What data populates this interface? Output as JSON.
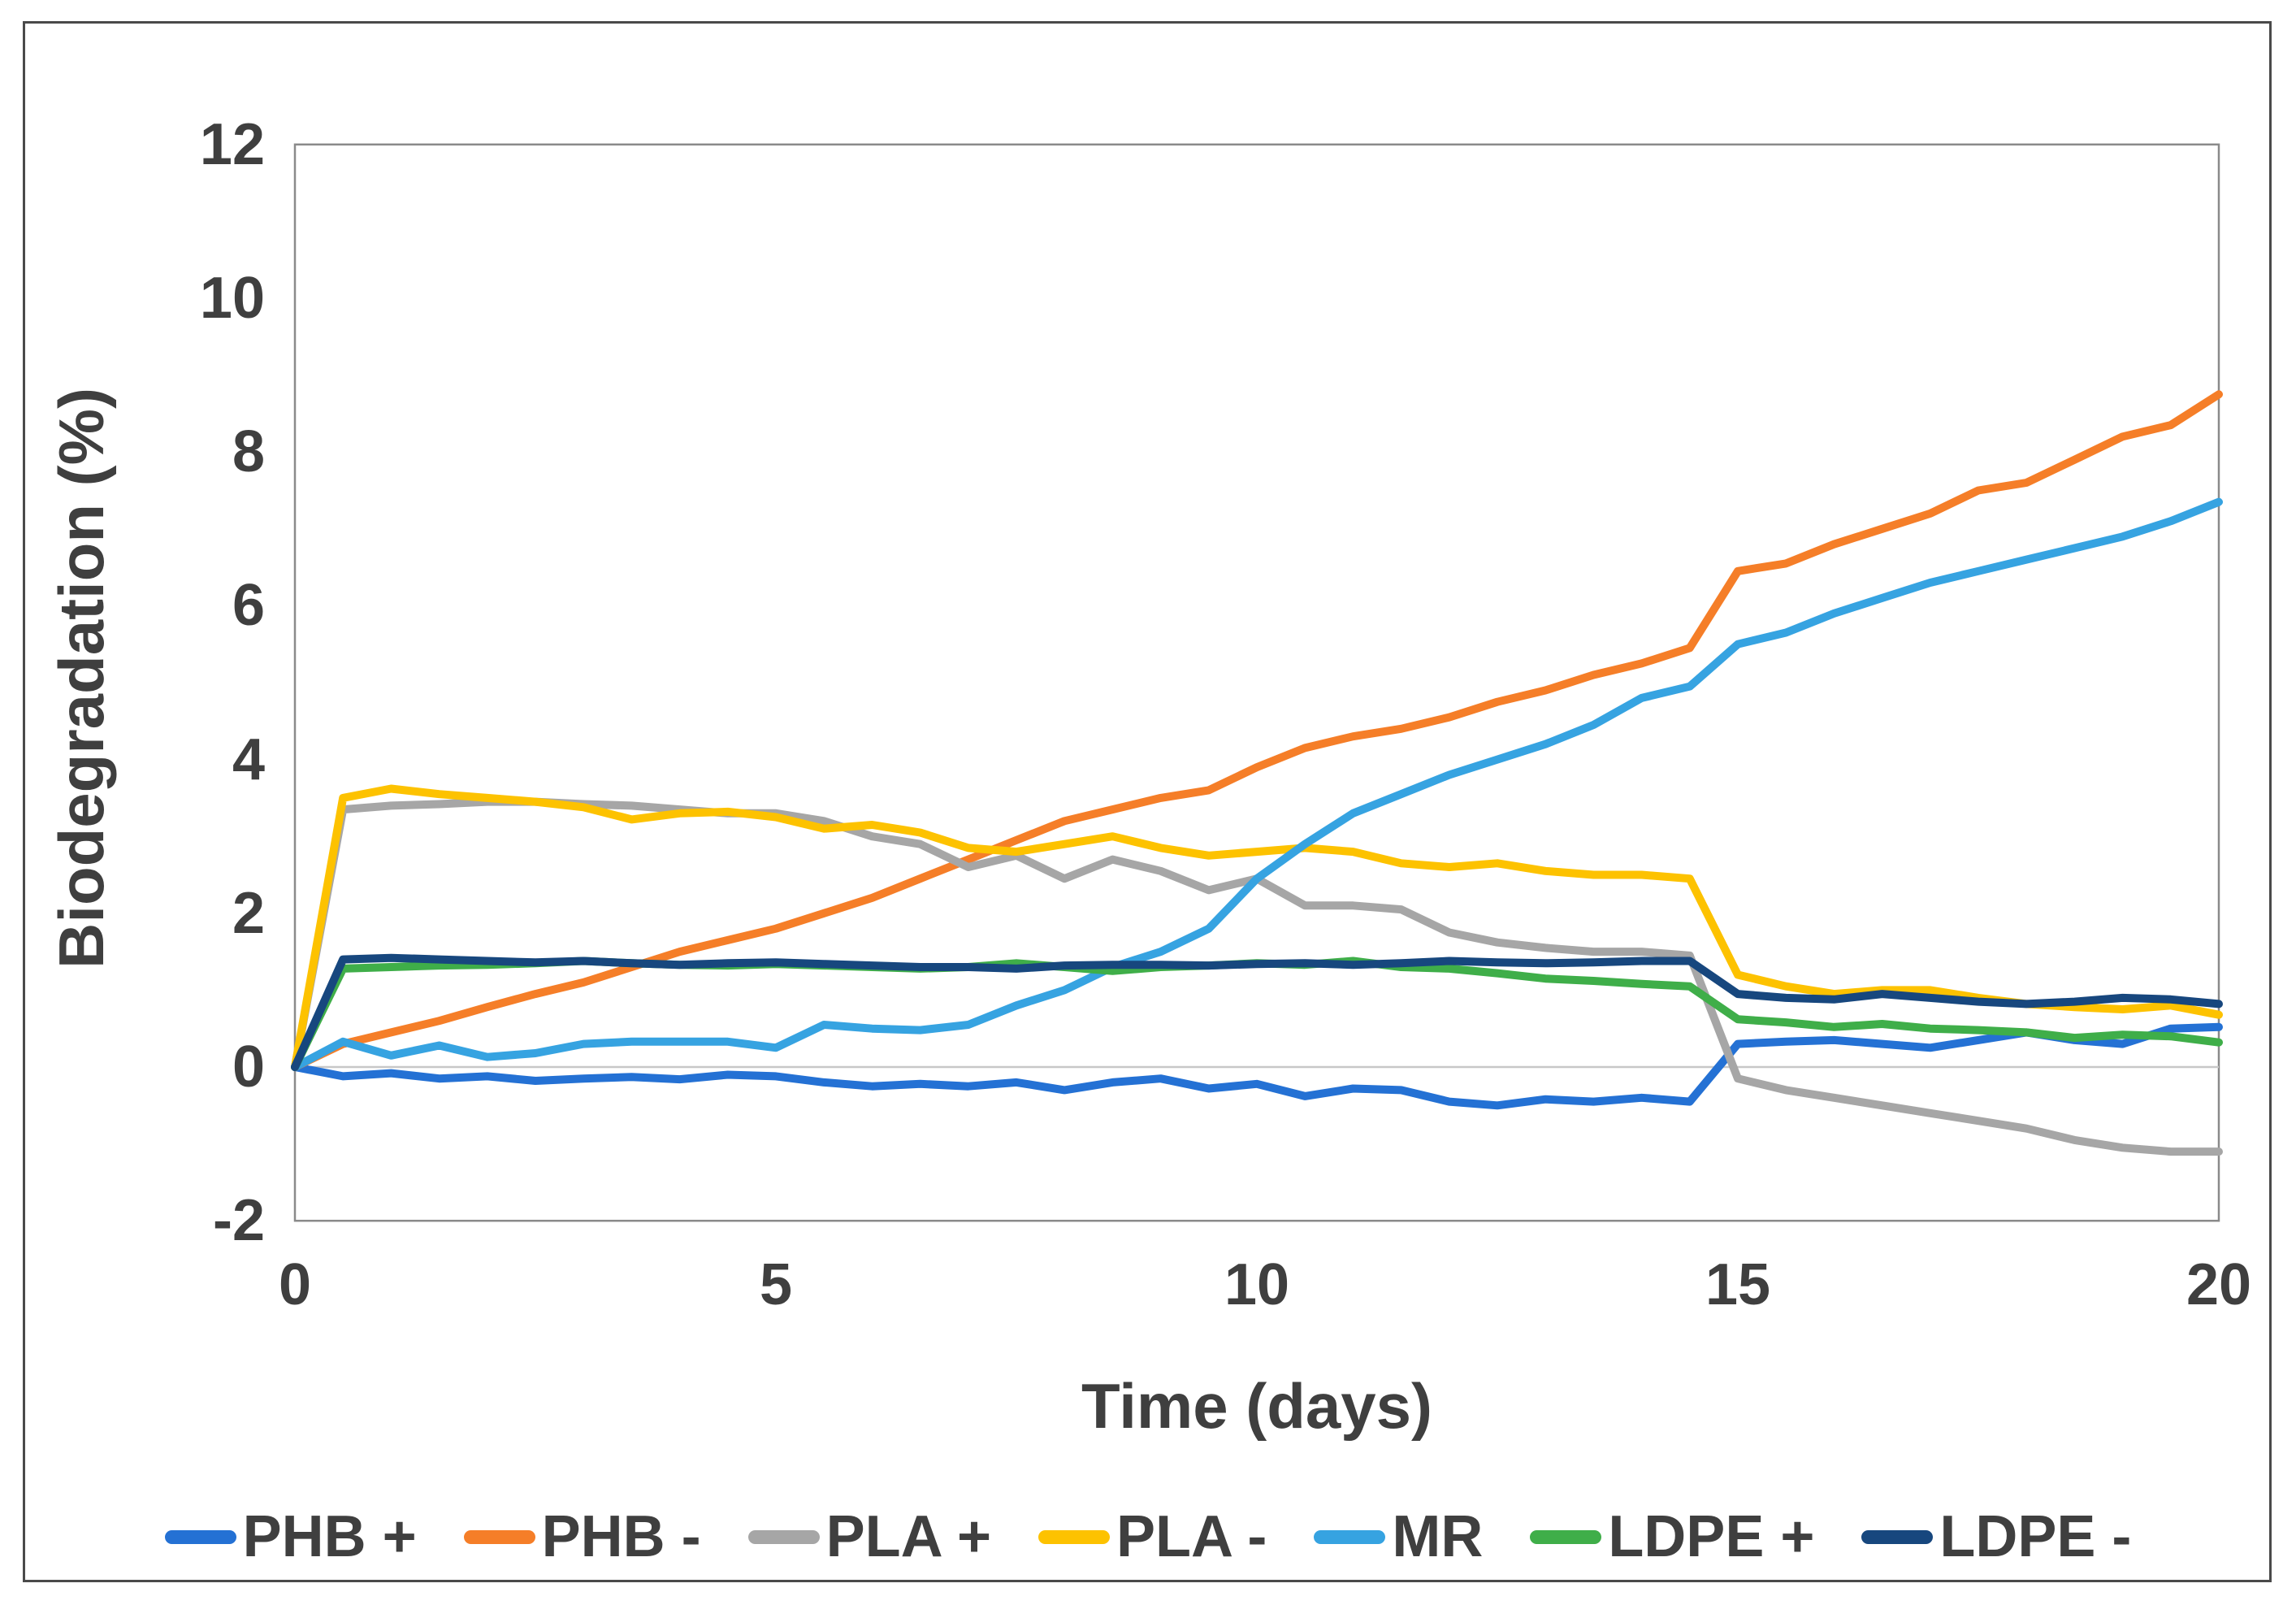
{
  "figure": {
    "background": "#ffffff",
    "border_color": "#4a4a4a",
    "plot_border_color": "#8a8a8a",
    "zero_line_color": "#c8c8c8",
    "text_color": "#3f3f3f"
  },
  "axes": {
    "x": {
      "title": "Time (days)",
      "ticks": [
        "0",
        "5",
        "10",
        "15",
        "20"
      ]
    },
    "y": {
      "title": "Biodegradation (%)",
      "ticks": [
        "12",
        "10",
        "8",
        "6",
        "4",
        "2",
        "0",
        "-2"
      ]
    }
  },
  "chart_data": {
    "type": "line",
    "title": "",
    "xlabel": "Time (days)",
    "ylabel": "Biodegradation (%)",
    "xlim": [
      0,
      20
    ],
    "ylim": [
      -2,
      12
    ],
    "x_tick_values": [
      0,
      5,
      10,
      15,
      20
    ],
    "y_tick_values": [
      12,
      10,
      8,
      6,
      4,
      2,
      0,
      -2
    ],
    "grid": "horizontal zero line only",
    "legend_position": "bottom",
    "x": [
      0,
      0.5,
      1,
      1.5,
      2,
      2.5,
      3,
      3.5,
      4,
      4.5,
      5,
      5.5,
      6,
      6.5,
      7,
      7.5,
      8,
      8.5,
      9,
      9.5,
      10,
      10.5,
      11,
      11.5,
      12,
      12.5,
      13,
      13.5,
      14,
      14.5,
      15,
      15.5,
      16,
      16.5,
      17,
      17.5,
      18,
      18.5,
      19,
      19.5,
      20
    ],
    "series": [
      {
        "name": "PHB +",
        "color": "#2471d4",
        "values": [
          0,
          -0.12,
          -0.08,
          -0.15,
          -0.12,
          -0.18,
          -0.15,
          -0.13,
          -0.16,
          -0.1,
          -0.12,
          -0.2,
          -0.25,
          -0.22,
          -0.25,
          -0.2,
          -0.3,
          -0.2,
          -0.15,
          -0.28,
          -0.22,
          -0.38,
          -0.28,
          -0.3,
          -0.45,
          -0.5,
          -0.42,
          -0.45,
          -0.4,
          -0.45,
          0.3,
          0.33,
          0.35,
          0.3,
          0.25,
          0.35,
          0.45,
          0.35,
          0.3,
          0.5,
          0.52
        ]
      },
      {
        "name": "PHB -",
        "color": "#f57e28",
        "values": [
          0,
          0.3,
          0.45,
          0.6,
          0.78,
          0.95,
          1.1,
          1.3,
          1.5,
          1.65,
          1.8,
          2.0,
          2.2,
          2.45,
          2.7,
          2.95,
          3.2,
          3.35,
          3.5,
          3.6,
          3.9,
          4.15,
          4.3,
          4.4,
          4.55,
          4.75,
          4.9,
          5.1,
          5.25,
          5.45,
          6.45,
          6.55,
          6.8,
          7.0,
          7.2,
          7.5,
          7.6,
          7.9,
          8.2,
          8.35,
          8.75
        ]
      },
      {
        "name": "PLA +",
        "color": "#a6a6a6",
        "values": [
          0,
          3.35,
          3.4,
          3.42,
          3.45,
          3.45,
          3.42,
          3.4,
          3.35,
          3.3,
          3.3,
          3.2,
          3.0,
          2.9,
          2.6,
          2.75,
          2.45,
          2.7,
          2.55,
          2.3,
          2.45,
          2.1,
          2.1,
          2.05,
          1.75,
          1.62,
          1.55,
          1.5,
          1.5,
          1.45,
          -0.15,
          -0.3,
          -0.4,
          -0.5,
          -0.6,
          -0.7,
          -0.8,
          -0.95,
          -1.05,
          -1.1,
          -1.1
        ]
      },
      {
        "name": "PLA -",
        "color": "#fdc200",
        "values": [
          0,
          3.5,
          3.62,
          3.55,
          3.5,
          3.45,
          3.38,
          3.22,
          3.3,
          3.32,
          3.25,
          3.1,
          3.15,
          3.05,
          2.85,
          2.8,
          2.9,
          3.0,
          2.85,
          2.75,
          2.8,
          2.85,
          2.8,
          2.65,
          2.6,
          2.65,
          2.55,
          2.5,
          2.5,
          2.45,
          1.2,
          1.05,
          0.95,
          1.0,
          1.0,
          0.9,
          0.82,
          0.78,
          0.75,
          0.8,
          0.68
        ]
      },
      {
        "name": "MR",
        "color": "#36a3e1",
        "values": [
          0,
          0.33,
          0.15,
          0.28,
          0.13,
          0.18,
          0.3,
          0.33,
          0.33,
          0.33,
          0.25,
          0.55,
          0.5,
          0.48,
          0.55,
          0.8,
          1.0,
          1.3,
          1.5,
          1.8,
          2.45,
          2.9,
          3.3,
          3.55,
          3.8,
          4.0,
          4.2,
          4.45,
          4.8,
          4.95,
          5.5,
          5.65,
          5.9,
          6.1,
          6.3,
          6.45,
          6.6,
          6.75,
          6.9,
          7.1,
          7.35
        ]
      },
      {
        "name": "LDPE +",
        "color": "#3fae49",
        "values": [
          0,
          1.28,
          1.3,
          1.32,
          1.33,
          1.35,
          1.38,
          1.35,
          1.33,
          1.32,
          1.34,
          1.32,
          1.3,
          1.28,
          1.3,
          1.35,
          1.3,
          1.25,
          1.3,
          1.32,
          1.35,
          1.33,
          1.38,
          1.3,
          1.28,
          1.22,
          1.15,
          1.12,
          1.08,
          1.05,
          0.62,
          0.58,
          0.52,
          0.56,
          0.5,
          0.48,
          0.45,
          0.38,
          0.42,
          0.4,
          0.32
        ]
      },
      {
        "name": "LDPE -",
        "color": "#17477e",
        "values": [
          0,
          1.4,
          1.42,
          1.4,
          1.38,
          1.36,
          1.38,
          1.35,
          1.33,
          1.35,
          1.36,
          1.34,
          1.32,
          1.3,
          1.3,
          1.28,
          1.32,
          1.33,
          1.33,
          1.32,
          1.34,
          1.35,
          1.33,
          1.35,
          1.38,
          1.36,
          1.35,
          1.36,
          1.38,
          1.38,
          0.95,
          0.9,
          0.88,
          0.95,
          0.9,
          0.85,
          0.82,
          0.85,
          0.9,
          0.88,
          0.82
        ]
      }
    ]
  }
}
